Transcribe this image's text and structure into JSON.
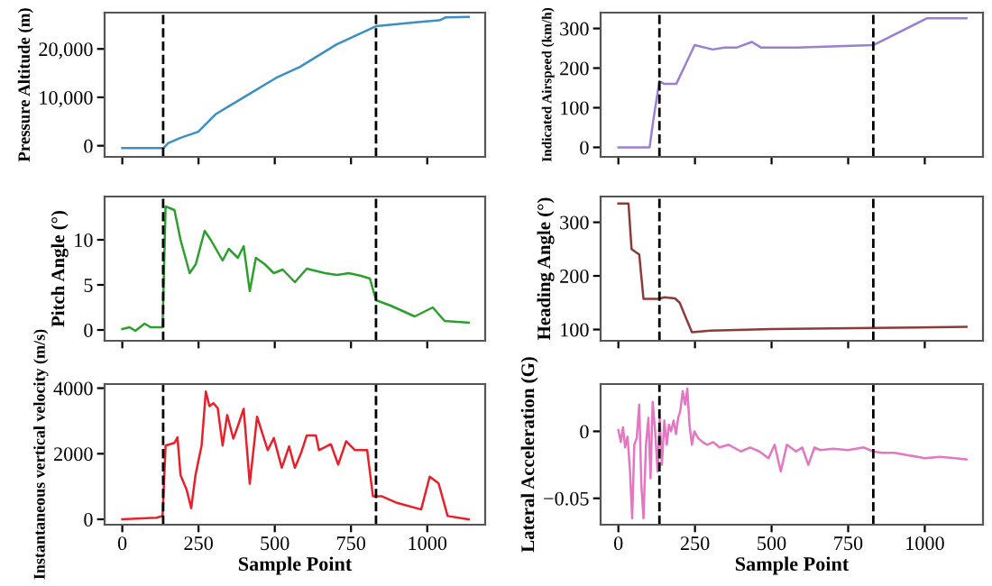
{
  "chart_data": [
    {
      "type": "line",
      "ylabel": "Pressure Altitude (m)",
      "color": "#3b8fc2",
      "tick_labels": "y",
      "x": [
        0,
        135,
        150,
        189,
        249,
        308,
        406,
        504,
        583,
        702,
        832,
        978,
        1040,
        1060,
        1136
      ],
      "values": [
        -500,
        -500,
        500,
        1600,
        2900,
        6600,
        10300,
        14000,
        16300,
        20900,
        24700,
        25600,
        25900,
        26500,
        26600
      ],
      "xlim": [
        -58,
        1190
      ],
      "xticks": [
        0,
        250,
        500,
        750,
        1000
      ],
      "ylim": [
        -2300,
        27500
      ],
      "yticks": [
        0,
        {
          "value": 10000,
          "label": "10,000"
        },
        {
          "value": 20000,
          "label": "20,000"
        }
      ],
      "ref_lines": [
        {
          "axis": "x",
          "value": 134,
          "color": "#000000",
          "line_style": "dashed"
        },
        {
          "axis": "x",
          "value": 832,
          "color": "#000000",
          "line_style": "dashed"
        }
      ]
    },
    {
      "type": "line",
      "ylabel": "Indicated Airspeed (km/h)",
      "color": "#9b7fd4",
      "tick_labels": "y",
      "x": [
        0,
        102,
        114,
        134,
        150,
        189,
        249,
        308,
        347,
        387,
        436,
        465,
        583,
        832,
        1008,
        1136
      ],
      "values": [
        0,
        0,
        69,
        167,
        160,
        160,
        258,
        247,
        252,
        252,
        266,
        252,
        252,
        258,
        326,
        326
      ],
      "xlim": [
        -58,
        1190
      ],
      "xticks": [
        0,
        250,
        500,
        750,
        1000
      ],
      "ylim": [
        -24,
        340
      ],
      "yticks": [
        0,
        100,
        200,
        300
      ],
      "ref_lines": [
        {
          "axis": "x",
          "value": 134,
          "color": "#000000",
          "line_style": "dashed"
        },
        {
          "axis": "x",
          "value": 832,
          "color": "#000000",
          "line_style": "dashed"
        }
      ]
    },
    {
      "type": "line",
      "ylabel": "Pitch Angle (°)",
      "color": "#2ca02c",
      "tick_labels": "y",
      "x": [
        0,
        24,
        43,
        73,
        93,
        132,
        142,
        171,
        191,
        221,
        241,
        270,
        290,
        329,
        349,
        379,
        398,
        418,
        438,
        467,
        497,
        526,
        566,
        605,
        665,
        704,
        743,
        783,
        812,
        832,
        880,
        959,
        1018,
        1057,
        1136
      ],
      "values": [
        0.1,
        0.3,
        -0.1,
        0.7,
        0.3,
        0.3,
        13.7,
        13.3,
        10,
        6.3,
        7.3,
        11,
        10,
        7.7,
        9,
        8,
        9.3,
        4.3,
        8,
        7.3,
        6.3,
        6.7,
        5.3,
        6.8,
        6.3,
        6.1,
        6.3,
        6,
        5.7,
        3.3,
        2.7,
        1.5,
        2.5,
        1,
        0.8
      ],
      "xlim": [
        -58,
        1190
      ],
      "xticks": [
        0,
        250,
        500,
        750,
        1000
      ],
      "ylim": [
        -1.2,
        14.8
      ],
      "yticks": [
        0,
        5,
        10
      ],
      "ref_lines": [
        {
          "axis": "x",
          "value": 134,
          "color": "#000000",
          "line_style": "dashed"
        },
        {
          "axis": "x",
          "value": 832,
          "color": "#000000",
          "line_style": "dashed"
        }
      ]
    },
    {
      "type": "line",
      "ylabel": "Heading Angle (°)",
      "color": "#8c3a3a",
      "tick_labels": "y",
      "x": [
        0,
        33,
        43,
        55,
        68,
        82,
        130,
        150,
        185,
        200,
        240,
        300,
        500,
        832,
        1136
      ],
      "values": [
        335,
        335,
        250,
        245,
        240,
        157,
        157,
        160,
        158,
        150,
        95,
        98,
        101,
        103,
        105
      ],
      "xlim": [
        -58,
        1190
      ],
      "xticks": [
        0,
        250,
        500,
        750,
        1000
      ],
      "ylim": [
        79,
        348
      ],
      "yticks": [
        100,
        200,
        300
      ],
      "ref_lines": [
        {
          "axis": "x",
          "value": 134,
          "color": "#000000",
          "line_style": "dashed"
        },
        {
          "axis": "x",
          "value": 832,
          "color": "#000000",
          "line_style": "dashed"
        }
      ]
    },
    {
      "type": "line",
      "ylabel": "Instantaneous vertical velocity (m/s)",
      "xlabel": "Sample Point",
      "color": "#e8202a",
      "x": [
        0,
        112,
        132,
        142,
        171,
        181,
        191,
        211,
        226,
        240,
        260,
        274,
        286,
        299,
        313,
        329,
        344,
        364,
        378,
        398,
        418,
        442,
        458,
        477,
        497,
        523,
        547,
        566,
        586,
        605,
        635,
        645,
        684,
        708,
        734,
        763,
        803,
        822,
        852,
        901,
        980,
        1008,
        1037,
        1067,
        1136
      ],
      "values": [
        0,
        50,
        100,
        2250,
        2330,
        2500,
        1350,
        900,
        340,
        1350,
        2250,
        3900,
        3450,
        3540,
        3390,
        2250,
        3180,
        2460,
        2820,
        3370,
        1080,
        3130,
        2660,
        2110,
        2480,
        1570,
        2220,
        1570,
        2020,
        2560,
        2560,
        2110,
        2290,
        1670,
        2380,
        2110,
        2110,
        700,
        700,
        500,
        300,
        1300,
        1100,
        100,
        0
      ],
      "xlim": [
        -58,
        1190
      ],
      "xticks": [
        0,
        250,
        500,
        750,
        1000
      ],
      "ylim": [
        -165,
        4125
      ],
      "yticks": [
        0,
        2000,
        4000
      ],
      "ref_lines": [
        {
          "axis": "x",
          "value": 134,
          "color": "#000000",
          "line_style": "dashed"
        },
        {
          "axis": "x",
          "value": 832,
          "color": "#000000",
          "line_style": "dashed"
        }
      ]
    },
    {
      "type": "line",
      "ylabel": "Lateral Acceleration (G)",
      "xlabel": "Sample Point",
      "color": "#e377c2",
      "x": [
        0,
        8,
        15,
        22,
        30,
        38,
        45,
        52,
        60,
        68,
        75,
        82,
        90,
        98,
        105,
        112,
        120,
        128,
        135,
        142,
        150,
        158,
        165,
        172,
        180,
        188,
        195,
        202,
        210,
        218,
        225,
        232,
        240,
        248,
        260,
        275,
        290,
        310,
        330,
        360,
        400,
        430,
        460,
        490,
        510,
        530,
        550,
        580,
        600,
        620,
        640,
        660,
        700,
        750,
        800,
        832,
        860,
        900,
        950,
        1000,
        1050,
        1100,
        1136
      ],
      "values": [
        0.001,
        -0.008,
        0.003,
        -0.012,
        -0.004,
        -0.03,
        -0.065,
        -0.01,
        -0.005,
        0.02,
        -0.04,
        -0.065,
        -0.01,
        0.01,
        -0.035,
        0.022,
        0.0,
        -0.03,
        0.01,
        -0.025,
        0.008,
        -0.01,
        0.005,
        0.0,
        0.008,
        -0.002,
        0.01,
        0.015,
        0.03,
        0.02,
        0.032,
        0.005,
        -0.01,
        0.0,
        -0.005,
        -0.008,
        -0.01,
        -0.008,
        -0.012,
        -0.01,
        -0.015,
        -0.012,
        -0.015,
        -0.02,
        -0.01,
        -0.03,
        -0.01,
        -0.015,
        -0.012,
        -0.025,
        -0.012,
        -0.014,
        -0.013,
        -0.014,
        -0.012,
        -0.015,
        -0.016,
        -0.016,
        -0.018,
        -0.02,
        -0.019,
        -0.02,
        -0.021
      ],
      "xlim": [
        -58,
        1190
      ],
      "xticks": [
        0,
        250,
        500,
        750,
        1000
      ],
      "ylim": [
        -0.0697,
        0.0353
      ],
      "yticks": [
        {
          "value": -0.05,
          "label": "−0.05"
        },
        0
      ],
      "ref_lines": [
        {
          "axis": "x",
          "value": 134,
          "color": "#000000",
          "line_style": "dashed"
        },
        {
          "axis": "x",
          "value": 832,
          "color": "#000000",
          "line_style": "dashed"
        }
      ]
    }
  ]
}
